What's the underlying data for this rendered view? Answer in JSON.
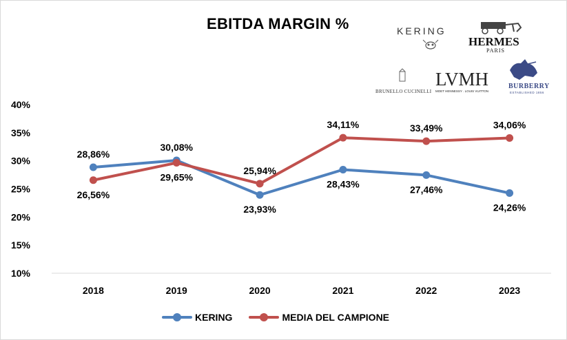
{
  "chart_data": {
    "type": "line",
    "title": "EBITDA MARGIN %",
    "categories": [
      "2018",
      "2019",
      "2020",
      "2021",
      "2022",
      "2023"
    ],
    "series": [
      {
        "name": "KERING",
        "color": "#4f81bd",
        "values": [
          28.86,
          30.08,
          23.93,
          28.43,
          27.46,
          24.26
        ],
        "labels": [
          "28,86%",
          "30,08%",
          "23,93%",
          "28,43%",
          "27,46%",
          "24,26%"
        ]
      },
      {
        "name": "MEDIA DEL CAMPIONE",
        "color": "#c0504d",
        "values": [
          26.56,
          29.65,
          25.94,
          34.11,
          33.49,
          34.06
        ],
        "labels": [
          "26,56%",
          "29,65%",
          "25,94%",
          "34,11%",
          "33,49%",
          "34,06%"
        ]
      }
    ],
    "ylim": [
      10,
      40
    ],
    "yticks": [
      10,
      15,
      20,
      25,
      30,
      35,
      40
    ],
    "ytick_labels": [
      "10%",
      "15%",
      "20%",
      "25%",
      "30%",
      "35%",
      "40%"
    ],
    "legend_position": "bottom",
    "grid": false
  },
  "logos": {
    "kering": "KERING",
    "hermes": "HERMES",
    "hermes_sub": "PARIS",
    "cucinelli": "BRUNELLO CUCINELLI",
    "lvmh": "LVMH",
    "lvmh_sub": "MOET HENNESSY . LOUIS VUITTON",
    "burberry": "BURBERRY",
    "burberry_sub": "ESTABLISHED 1856"
  }
}
